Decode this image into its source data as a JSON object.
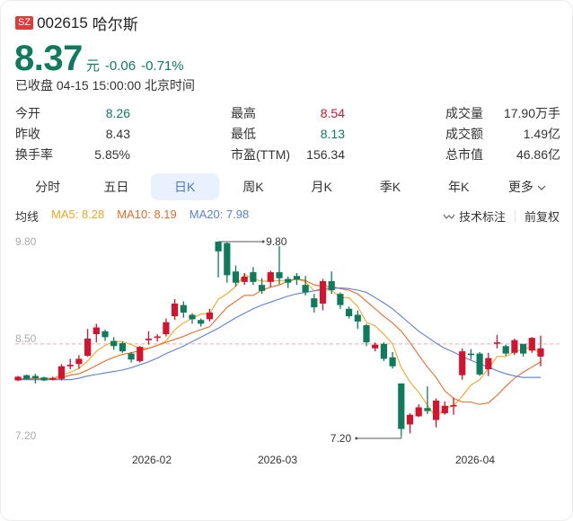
{
  "header": {
    "exchange_badge": "SZ",
    "code": "002615",
    "name": "哈尔斯",
    "price": "8.37",
    "unit": "元",
    "change": "-0.06",
    "change_pct": "-0.71%",
    "status": "已收盘 04-15 15:00:00 北京时间"
  },
  "stats": {
    "col1": [
      {
        "label": "今开",
        "value": "8.26",
        "color": "#0e7c5c"
      },
      {
        "label": "昨收",
        "value": "8.43",
        "color": "#333333"
      },
      {
        "label": "换手率",
        "value": "5.85%",
        "color": "#333333"
      }
    ],
    "col2": [
      {
        "label": "最高",
        "value": "8.54",
        "color": "#d4132f"
      },
      {
        "label": "最低",
        "value": "8.13",
        "color": "#0e7c5c"
      },
      {
        "label": "市盈(TTM)",
        "value": "156.34",
        "color": "#333333"
      }
    ],
    "col3": [
      {
        "label": "成交量",
        "value": "17.90万手",
        "color": "#333333"
      },
      {
        "label": "成交额",
        "value": "1.49亿",
        "color": "#333333"
      },
      {
        "label": "总市值",
        "value": "46.86亿",
        "color": "#333333"
      }
    ]
  },
  "tabs": [
    {
      "label": "分时",
      "active": false
    },
    {
      "label": "五日",
      "active": false
    },
    {
      "label": "日K",
      "active": true
    },
    {
      "label": "周K",
      "active": false
    },
    {
      "label": "月K",
      "active": false
    },
    {
      "label": "季K",
      "active": false
    },
    {
      "label": "年K",
      "active": false
    },
    {
      "label": "更多",
      "active": false,
      "icon": "chevron-down-icon"
    }
  ],
  "ma": {
    "label": "均线",
    "ma5": "MA5: 8.28",
    "ma10": "MA10: 8.19",
    "ma20": "MA20: 7.98",
    "ma5_color": "#f5a623",
    "ma10_color": "#f06a25",
    "ma20_color": "#5b7fe0"
  },
  "toolbar": {
    "annotate_label": "技术标注",
    "adjust_label": "前复权"
  },
  "colors": {
    "up": "#d4132f",
    "down": "#0e7c5c",
    "ref_line": "#f2a6a6"
  },
  "chart_data": {
    "type": "candlestick",
    "title": "002615 哈尔斯 日K",
    "xlabel": "",
    "ylabel": "",
    "ylim": [
      7.2,
      9.8
    ],
    "y_ticks": [
      "9.80",
      "8.50",
      "7.20"
    ],
    "x_ticks": [
      "2026-02",
      "2026-03",
      "2026-04"
    ],
    "reference_line": 8.43,
    "annotations": [
      {
        "label": "9.80",
        "type": "max"
      },
      {
        "label": "7.20",
        "type": "min"
      }
    ],
    "legend": [
      "MA5: 8.28",
      "MA10: 8.19",
      "MA20: 7.98"
    ],
    "candles": [
      {
        "o": 7.94,
        "c": 7.99,
        "h": 8.0,
        "l": 7.93
      },
      {
        "o": 8.01,
        "c": 7.96,
        "h": 8.02,
        "l": 7.95
      },
      {
        "o": 8.0,
        "c": 7.97,
        "h": 8.03,
        "l": 7.9
      },
      {
        "o": 7.98,
        "c": 7.94,
        "h": 7.99,
        "l": 7.93
      },
      {
        "o": 7.95,
        "c": 7.97,
        "h": 7.99,
        "l": 7.94
      },
      {
        "o": 7.96,
        "c": 8.13,
        "h": 8.16,
        "l": 7.94
      },
      {
        "o": 8.13,
        "c": 8.15,
        "h": 8.23,
        "l": 8.09
      },
      {
        "o": 8.16,
        "c": 8.23,
        "h": 8.28,
        "l": 8.1
      },
      {
        "o": 8.27,
        "c": 8.5,
        "h": 8.63,
        "l": 8.26
      },
      {
        "o": 8.56,
        "c": 8.65,
        "h": 8.7,
        "l": 8.45
      },
      {
        "o": 8.6,
        "c": 8.52,
        "h": 8.62,
        "l": 8.47
      },
      {
        "o": 8.47,
        "c": 8.4,
        "h": 8.52,
        "l": 8.35
      },
      {
        "o": 8.44,
        "c": 8.33,
        "h": 8.46,
        "l": 8.31
      },
      {
        "o": 8.3,
        "c": 8.22,
        "h": 8.32,
        "l": 8.18
      },
      {
        "o": 8.2,
        "c": 8.39,
        "h": 8.4,
        "l": 8.18
      },
      {
        "o": 8.48,
        "c": 8.5,
        "h": 8.6,
        "l": 8.42
      },
      {
        "o": 8.51,
        "c": 8.53,
        "h": 8.56,
        "l": 8.46
      },
      {
        "o": 8.56,
        "c": 8.72,
        "h": 8.77,
        "l": 8.53
      },
      {
        "o": 8.8,
        "c": 8.97,
        "h": 9.03,
        "l": 8.75
      },
      {
        "o": 8.95,
        "c": 8.85,
        "h": 9.0,
        "l": 8.78
      },
      {
        "o": 8.82,
        "c": 8.76,
        "h": 8.84,
        "l": 8.7
      },
      {
        "o": 8.75,
        "c": 8.7,
        "h": 8.77,
        "l": 8.66
      },
      {
        "o": 8.76,
        "c": 8.85,
        "h": 8.9,
        "l": 8.73
      },
      {
        "o": 9.8,
        "c": 9.67,
        "h": 9.8,
        "l": 9.32
      },
      {
        "o": 9.78,
        "c": 9.35,
        "h": 9.79,
        "l": 9.25
      },
      {
        "o": 9.4,
        "c": 9.25,
        "h": 9.48,
        "l": 9.2
      },
      {
        "o": 9.26,
        "c": 9.33,
        "h": 9.38,
        "l": 9.22
      },
      {
        "o": 9.39,
        "c": 9.26,
        "h": 9.46,
        "l": 9.22
      },
      {
        "o": 9.22,
        "c": 9.14,
        "h": 9.31,
        "l": 9.1
      },
      {
        "o": 9.26,
        "c": 9.39,
        "h": 9.41,
        "l": 9.19
      },
      {
        "o": 9.39,
        "c": 9.31,
        "h": 9.74,
        "l": 9.23
      },
      {
        "o": 9.3,
        "c": 9.25,
        "h": 9.33,
        "l": 9.18
      },
      {
        "o": 9.34,
        "c": 9.29,
        "h": 9.38,
        "l": 9.22
      },
      {
        "o": 9.22,
        "c": 9.12,
        "h": 9.34,
        "l": 9.08
      },
      {
        "o": 9.04,
        "c": 8.92,
        "h": 9.1,
        "l": 8.85
      },
      {
        "o": 8.97,
        "c": 9.27,
        "h": 9.3,
        "l": 8.88
      },
      {
        "o": 9.27,
        "c": 9.15,
        "h": 9.4,
        "l": 9.1
      },
      {
        "o": 9.1,
        "c": 8.95,
        "h": 9.12,
        "l": 8.9
      },
      {
        "o": 8.9,
        "c": 8.8,
        "h": 8.93,
        "l": 8.77
      },
      {
        "o": 8.82,
        "c": 8.73,
        "h": 8.88,
        "l": 8.63
      },
      {
        "o": 8.68,
        "c": 8.45,
        "h": 8.7,
        "l": 8.4
      },
      {
        "o": 8.37,
        "c": 8.42,
        "h": 8.45,
        "l": 8.33
      },
      {
        "o": 8.43,
        "c": 8.23,
        "h": 8.45,
        "l": 8.2
      },
      {
        "o": 8.25,
        "c": 8.13,
        "h": 8.32,
        "l": 8.1
      },
      {
        "o": 7.9,
        "c": 7.29,
        "h": 7.9,
        "l": 7.2
      },
      {
        "o": 7.35,
        "c": 7.48,
        "h": 7.5,
        "l": 7.23
      },
      {
        "o": 7.46,
        "c": 7.58,
        "h": 7.62,
        "l": 7.45
      },
      {
        "o": 7.57,
        "c": 7.53,
        "h": 7.86,
        "l": 7.49
      },
      {
        "o": 7.41,
        "c": 7.67,
        "h": 7.7,
        "l": 7.31
      },
      {
        "o": 7.5,
        "c": 7.6,
        "h": 7.66,
        "l": 7.48
      },
      {
        "o": 7.59,
        "c": 7.61,
        "h": 7.71,
        "l": 7.48
      },
      {
        "o": 8.01,
        "c": 8.33,
        "h": 8.37,
        "l": 7.95
      },
      {
        "o": 8.3,
        "c": 8.28,
        "h": 8.36,
        "l": 8.22
      },
      {
        "o": 8.3,
        "c": 8.02,
        "h": 8.32,
        "l": 8.0
      },
      {
        "o": 8.09,
        "c": 8.24,
        "h": 8.31,
        "l": 8.0
      },
      {
        "o": 8.44,
        "c": 8.45,
        "h": 8.55,
        "l": 8.37
      },
      {
        "o": 8.4,
        "c": 8.3,
        "h": 8.42,
        "l": 8.27
      },
      {
        "o": 8.31,
        "c": 8.48,
        "h": 8.5,
        "l": 8.28
      },
      {
        "o": 8.43,
        "c": 8.3,
        "h": 8.43,
        "l": 8.26
      },
      {
        "o": 8.34,
        "c": 8.51,
        "h": 8.52,
        "l": 8.31
      },
      {
        "o": 8.26,
        "c": 8.37,
        "h": 8.54,
        "l": 8.13
      }
    ],
    "series": [
      {
        "name": "MA5",
        "color": "#f5a623",
        "values": [
          7.96,
          7.97,
          7.97,
          7.97,
          7.97,
          8.01,
          8.05,
          8.1,
          8.2,
          8.33,
          8.41,
          8.46,
          8.46,
          8.42,
          8.37,
          8.37,
          8.41,
          8.47,
          8.62,
          8.71,
          8.77,
          8.83,
          8.83,
          9.03,
          9.1,
          9.2,
          9.36,
          9.3,
          9.27,
          9.27,
          9.28,
          9.28,
          9.3,
          9.26,
          9.14,
          9.15,
          9.15,
          9.05,
          9.05,
          8.93,
          8.72,
          8.67,
          8.56,
          8.43,
          8.11,
          7.92,
          7.78,
          7.61,
          7.44,
          7.57,
          7.6,
          7.73,
          7.88,
          7.95,
          8.1,
          8.26,
          8.26,
          8.33,
          8.35,
          8.4,
          8.28
        ]
      },
      {
        "name": "MA10",
        "color": "#f06a25",
        "values": [
          7.96,
          7.96,
          7.96,
          7.96,
          7.96,
          7.98,
          8.01,
          8.03,
          8.08,
          8.14,
          8.2,
          8.25,
          8.29,
          8.31,
          8.34,
          8.37,
          8.41,
          8.45,
          8.49,
          8.53,
          8.58,
          8.62,
          8.66,
          8.79,
          8.92,
          9.0,
          9.08,
          9.08,
          9.15,
          9.19,
          9.22,
          9.27,
          9.3,
          9.28,
          9.22,
          9.2,
          9.2,
          9.17,
          9.15,
          9.1,
          9.0,
          8.9,
          8.8,
          8.71,
          8.6,
          8.45,
          8.28,
          8.12,
          7.98,
          7.8,
          7.7,
          7.65,
          7.65,
          7.62,
          7.64,
          7.74,
          7.86,
          7.97,
          8.05,
          8.12,
          8.19
        ]
      },
      {
        "name": "MA20",
        "color": "#5b7fe0",
        "values": [
          7.95,
          7.95,
          7.95,
          7.95,
          7.95,
          7.95,
          7.95,
          7.97,
          8.0,
          8.02,
          8.04,
          8.06,
          8.08,
          8.11,
          8.15,
          8.19,
          8.24,
          8.3,
          8.35,
          8.4,
          8.46,
          8.52,
          8.58,
          8.64,
          8.71,
          8.78,
          8.84,
          8.9,
          8.95,
          8.99,
          9.03,
          9.07,
          9.1,
          9.12,
          9.14,
          9.17,
          9.17,
          9.18,
          9.17,
          9.15,
          9.12,
          9.05,
          8.98,
          8.9,
          8.8,
          8.7,
          8.6,
          8.52,
          8.44,
          8.37,
          8.32,
          8.26,
          8.21,
          8.16,
          8.12,
          8.07,
          8.03,
          8.0,
          7.98,
          7.98,
          7.98
        ]
      }
    ]
  }
}
